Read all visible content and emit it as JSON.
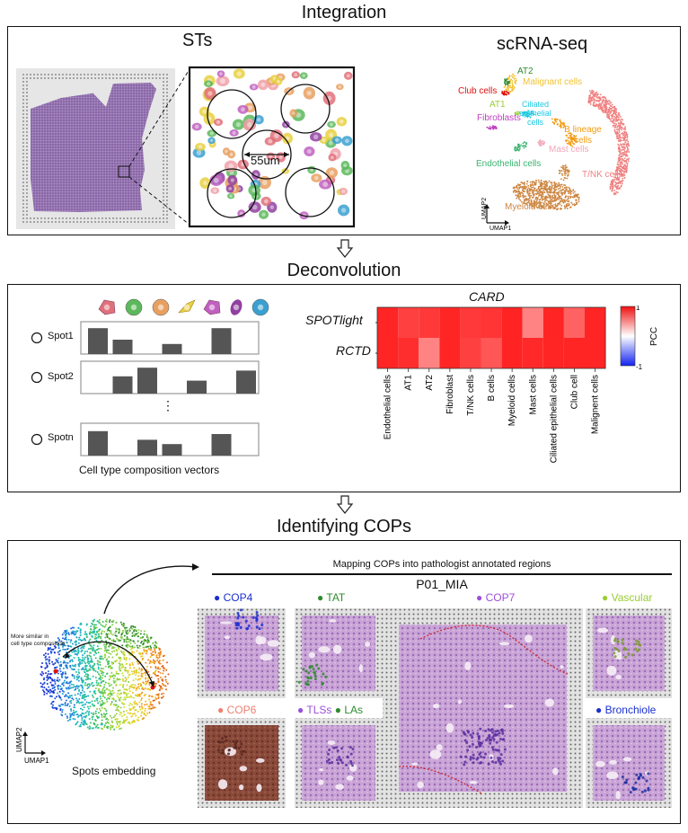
{
  "sections": {
    "integration": "Integration",
    "deconvolution": "Deconvolution",
    "identifying": "Identifying COPs"
  },
  "integration": {
    "sts_title": "STs",
    "scale_label": "55um",
    "scrna_title": "scRNA-seq",
    "umap_axis_1": "UMAP1",
    "umap_axis_2": "UMAP2",
    "clusters": [
      {
        "label": "AT2",
        "color": "#2e8b2e"
      },
      {
        "label": "Malignant cells",
        "color": "#f2c230"
      },
      {
        "label": "Club cells",
        "color": "#e01010"
      },
      {
        "label": "AT1",
        "color": "#9acd32"
      },
      {
        "label": "Ciliated epithelial cells",
        "color": "#1ec8e0"
      },
      {
        "label": "Fibroblasts",
        "color": "#c040c0"
      },
      {
        "label": "B lineage cells",
        "color": "#f39c12"
      },
      {
        "label": "Mast cells",
        "color": "#f4a6b8"
      },
      {
        "label": "Endothelial cells",
        "color": "#3cb371"
      },
      {
        "label": "T/NK cells",
        "color": "#f08080"
      },
      {
        "label": "Myeloid cells",
        "color": "#cd853f"
      }
    ]
  },
  "deconvolution": {
    "spots": [
      "Spot1",
      "Spot2",
      "Spotn"
    ],
    "ellipsis": "⋮",
    "vectors_caption": "Cell type composition vectors",
    "spot_values": [
      [
        0.9,
        0.5,
        0,
        0.35,
        0,
        0.9,
        0
      ],
      [
        0,
        0.6,
        0.9,
        0,
        0.45,
        0,
        0.8
      ],
      [
        0.85,
        0,
        0.55,
        0.4,
        0,
        0.75,
        0
      ]
    ],
    "cell_icon_colors": [
      "#e0707a",
      "#5cb85c",
      "#e8a060",
      "#e8d040",
      "#c060c0",
      "#9040a0",
      "#3aa0d0"
    ]
  },
  "heatmap": {
    "title": "CARD",
    "rows": [
      "SPOTlight",
      "RCTD"
    ],
    "cols": [
      "Endothelial cells",
      "AT1",
      "AT2",
      "Fibroblast",
      "T/NK cells",
      "B cells",
      "Myeloid cells",
      "Mast cells",
      "Ciliated epithelial cells",
      "Club cell",
      "Malignent cells"
    ],
    "values": [
      [
        0.97,
        0.85,
        0.88,
        0.97,
        0.88,
        0.9,
        0.98,
        0.55,
        0.97,
        0.7,
        0.97
      ],
      [
        0.97,
        0.93,
        0.55,
        0.97,
        0.85,
        0.75,
        0.98,
        0.95,
        0.97,
        0.97,
        0.97
      ]
    ],
    "legend_label": "PCC",
    "legend_max": "1",
    "legend_min": "-1"
  },
  "cops": {
    "mapping_title": "Mapping COPs into pathologist annotated regions",
    "sample": "P01_MIA",
    "embedding_caption": "Spots embedding",
    "similar_note_line1": "More similar in",
    "similar_note_line2": "cell type composition",
    "umap_axis_1": "UMAP1",
    "umap_axis_2": "UMAP2",
    "panels": [
      {
        "label": "COP4",
        "dot": "#1a2fd0"
      },
      {
        "label": "TAT",
        "dot": "#2e8b2e"
      },
      {
        "label": "COP7",
        "dot": "#9b4fd8"
      },
      {
        "label": "Vascular",
        "dot": "#9acd32"
      },
      {
        "label": "COP6",
        "dot": "#f08070"
      },
      {
        "label": "TLSs",
        "dot": "#9b4fd8"
      },
      {
        "label": "LAs",
        "dot": "#2e8b2e"
      },
      {
        "label": "Bronchiole",
        "dot": "#1a2fd0"
      }
    ]
  }
}
